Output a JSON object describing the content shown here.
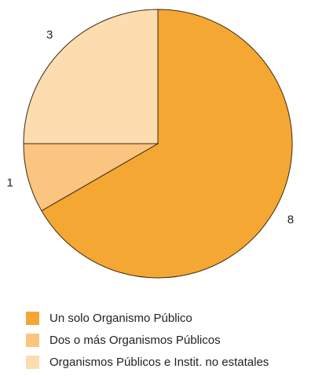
{
  "chart_data": {
    "type": "pie",
    "categories": [
      "Un solo Organismo Público",
      "Dos o más Organismos Públicos",
      "Organismos Públicos e Instit. no estatales"
    ],
    "values": [
      8,
      1,
      3
    ],
    "colors": [
      "#f5a733",
      "#fbc47f",
      "#fddcb0"
    ]
  }
}
